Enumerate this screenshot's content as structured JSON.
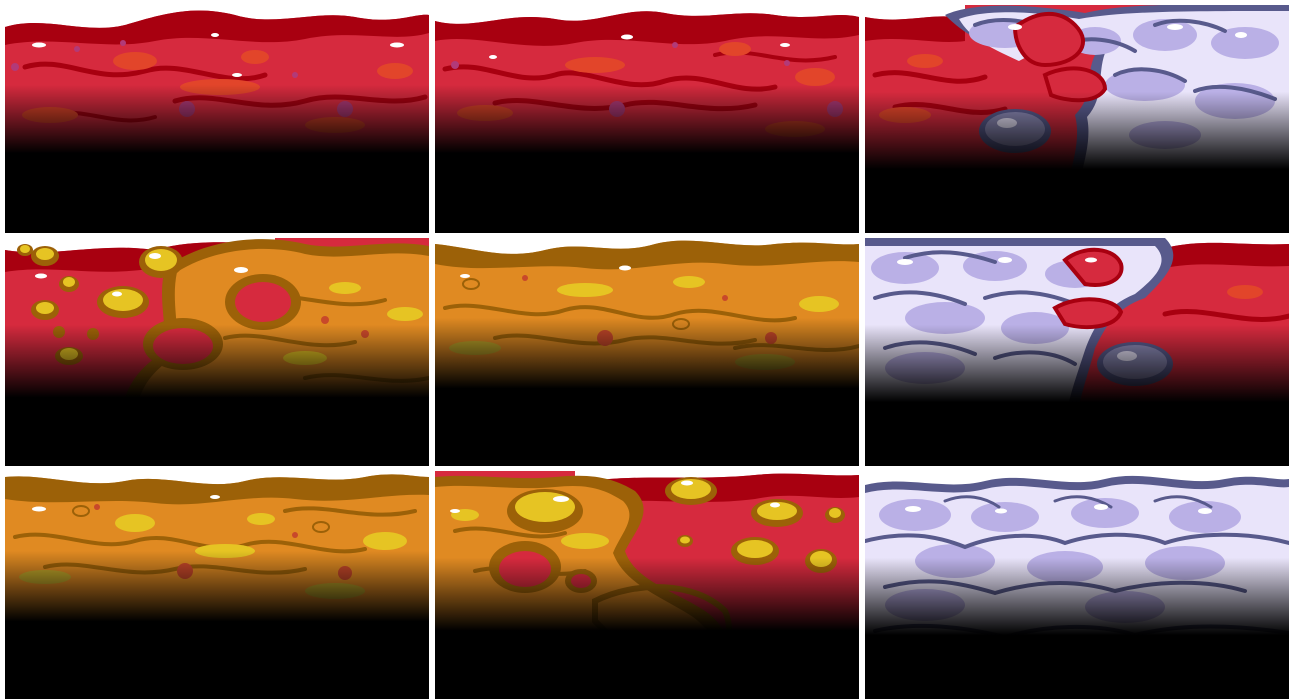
{
  "sheet": {
    "kind": "terrain-tileset",
    "columns": 3,
    "rows": 3,
    "colors": {
      "flesh": "#d62a3e",
      "flesh_dark": "#a80010",
      "flesh_spot": "#e2452a",
      "flesh_purple": "#b23a78",
      "bile": "#e08a22",
      "bile_dark": "#9c6108",
      "bile_spot": "#e6c423",
      "bile_red": "#c8482a",
      "fat": "#e9e4fa",
      "fat_mid": "#bab0e6",
      "fat_edge": "#585a8c",
      "shade": "#000000"
    },
    "tiles": [
      {
        "name": "flesh-surface",
        "variant": "flesh-a"
      },
      {
        "name": "flesh-surface",
        "variant": "flesh-b"
      },
      {
        "name": "flesh-fat-transition",
        "variant": "flesh-fat-right"
      },
      {
        "name": "flesh-bile-transition",
        "variant": "flesh-bile-right"
      },
      {
        "name": "bile-surface",
        "variant": "bile-a"
      },
      {
        "name": "fat-flesh-transition",
        "variant": "fat-flesh-right"
      },
      {
        "name": "bile-surface",
        "variant": "bile-b"
      },
      {
        "name": "bile-flesh-transition",
        "variant": "bile-flesh-right"
      },
      {
        "name": "fat-surface",
        "variant": "fat-a"
      }
    ]
  }
}
